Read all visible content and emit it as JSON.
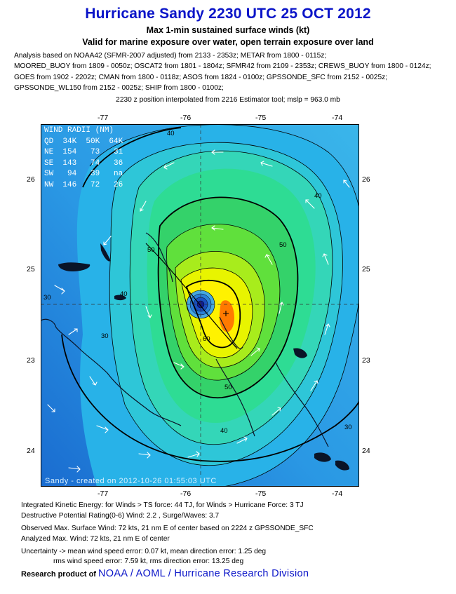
{
  "header": {
    "title": "Hurricane Sandy 2230 UTC 25 OCT 2012",
    "subtitle1": "Max 1-min sustained surface winds (kt)",
    "subtitle2": "Valid for marine exposure over water, open terrain exposure over land",
    "analysis_lines": [
      "Analysis based on NOAA42 (SFMR-2007 adjusted) from 2133 - 2353z; METAR from 1800 - 0115z;",
      "MOORED_BUOY from 1809 - 0050z; OSCAT2 from 1801 - 1804z; SFMR42 from 2109 - 2353z; CREWS_BUOY from 1800 - 0124z;",
      "GOES from 1902 - 2202z; CMAN from 1800 - 0118z; ASOS from 1824 - 0100z; GPSSONDE_SFC from 2152 - 0025z;",
      "GPSSONDE_WL150 from 2152 - 0025z; SHIP from 1800 - 0100z;"
    ],
    "position_note": "2230 z position interpolated from 2216 Estimator tool; mslp = 963.0 mb"
  },
  "map": {
    "lon_ticks": [
      "-77",
      "-76",
      "-75",
      "-74"
    ],
    "lat_ticks": [
      "26",
      "25",
      "24",
      "23"
    ],
    "wind_radii": {
      "title": "WIND RADII (NM)",
      "header": "QD  34K  50K  64K",
      "rows": [
        "NE  154   73   31",
        "SE  143   74   36",
        "SW   94   39   na",
        "NW  146   72   26"
      ]
    },
    "contour_labels": [
      "40",
      "40",
      "40",
      "40",
      "50",
      "50",
      "50",
      "60",
      "30",
      "30",
      "30"
    ],
    "credit": "Sandy - created on 2012-10-26 01:55:03 UTC",
    "colors": {
      "ocean_low": "#1e7ad8",
      "band_30": "#1ea0e6",
      "band_40": "#3cc8d2",
      "band_50": "#28d28c",
      "band_60": "#50e03c",
      "band_70": "#c8f000",
      "band_80": "#fff000",
      "max": "#ff7800",
      "center": "#1a3cc8",
      "land": "#0a1428"
    }
  },
  "footer": {
    "ike": "Integrated Kinetic Energy: for Winds > TS force: 44 TJ, for Winds > Hurricane Force: 3 TJ",
    "dpr": "Destructive Potential Rating(0-6)  Wind: 2.2 , Surge/Waves: 3.7",
    "observed": "Observed Max. Surface Wind: 72 kts, 21 nm E of center based on 2224 z GPSSONDE_SFC",
    "analyzed": "Analyzed Max. Wind: 72 kts, 21 nm  E of center",
    "uncertainty1": "Uncertainty -> mean wind speed error: 0.07 kt, mean direction error: 1.25 deg",
    "uncertainty2": "rms wind speed error: 7.59 kt, rms direction error: 13.25 deg",
    "research_label": "Research product of",
    "org": "NOAA  /  AOML  /  Hurricane Research Division"
  }
}
